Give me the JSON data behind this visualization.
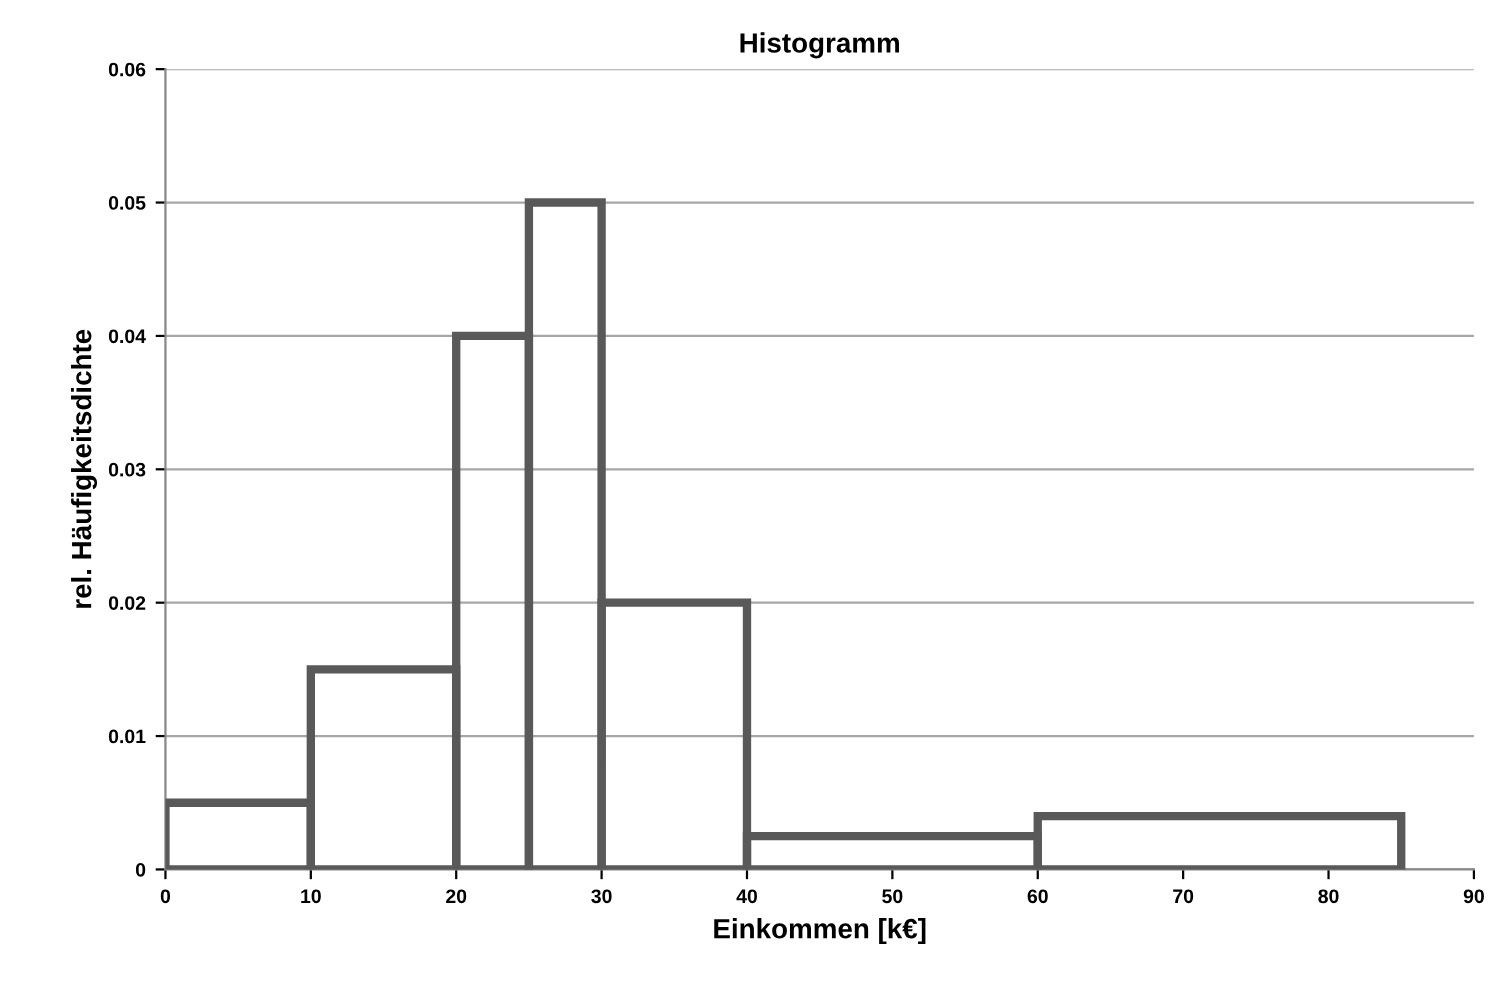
{
  "chart_data": {
    "type": "histogram",
    "title": "Histogramm",
    "xlabel": "Einkommen [k€]",
    "ylabel": "rel. Häufigkeitsdichte",
    "bins": [
      0,
      10,
      20,
      25,
      30,
      40,
      60,
      85
    ],
    "values": [
      0.005,
      0.015,
      0.04,
      0.05,
      0.02,
      0.0025,
      0.004
    ],
    "color": "#595959",
    "xlim": [
      0,
      90
    ],
    "xticks": [
      0,
      10,
      20,
      30,
      40,
      50,
      60,
      70,
      80,
      90
    ],
    "ylim": [
      0,
      0.06
    ],
    "yticks": [
      {
        "value": 0,
        "label": "0"
      },
      0.01,
      0.02,
      0.03,
      0.04,
      0.05,
      0.06
    ],
    "grid": "y"
  }
}
